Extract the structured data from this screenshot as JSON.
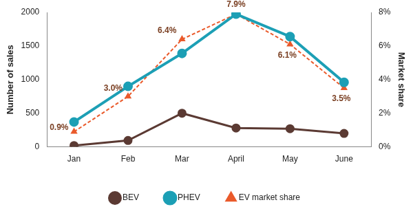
{
  "chart_data": {
    "type": "line",
    "categories": [
      "Jan",
      "Feb",
      "Mar",
      "April",
      "May",
      "June"
    ],
    "y_label": "Number of sales",
    "y2_label": "Market share",
    "ylim": [
      0,
      2000
    ],
    "yticks": [
      0,
      500,
      1000,
      1500,
      2000
    ],
    "y2lim": [
      0,
      8
    ],
    "y2ticks": [
      {
        "value": 0,
        "label": "0%"
      },
      {
        "value": 2,
        "label": "2%"
      },
      {
        "value": 4,
        "label": "4%"
      },
      {
        "value": 6,
        "label": "6%"
      },
      {
        "value": 8,
        "label": "8%"
      }
    ],
    "grid": false,
    "legend": "bottom",
    "series": [
      {
        "name": "BEV",
        "color": "#5b3a33",
        "marker": "circle",
        "line_style": "solid",
        "values": [
          20,
          95,
          500,
          280,
          270,
          200
        ]
      },
      {
        "name": "PHEV",
        "color": "#1c9fb5",
        "marker": "circle",
        "line_style": "solid",
        "values": [
          370,
          900,
          1390,
          1975,
          1640,
          960
        ]
      },
      {
        "name": "EV market share",
        "axis": "y2",
        "color": "#ea5a2b",
        "marker": "triangle",
        "line_style": "dashed",
        "data_labels": true,
        "values": [
          0.9,
          3.0,
          6.4,
          7.9,
          6.1,
          3.5
        ],
        "value_labels": [
          "0.9%",
          "3.0%",
          "6.4%",
          "7.9%",
          "6.1%",
          "3.5%"
        ]
      }
    ]
  }
}
